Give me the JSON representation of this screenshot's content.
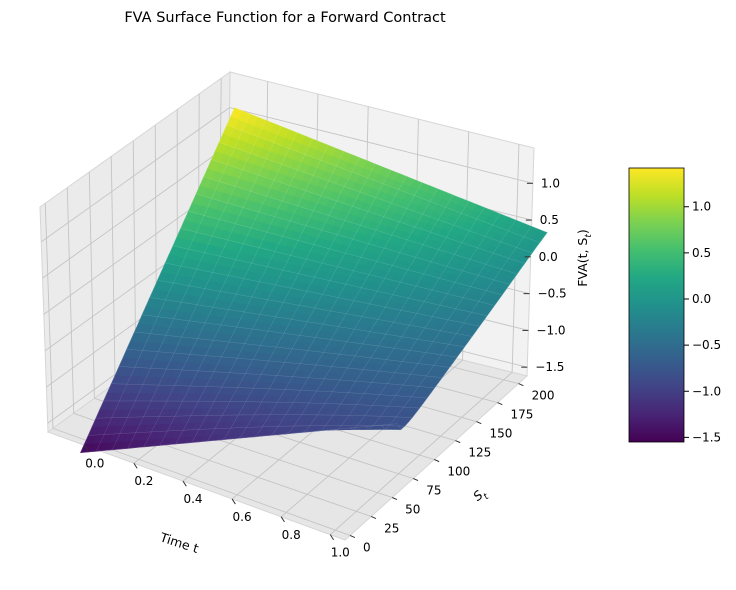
{
  "chart_data": {
    "type": "surface3d",
    "title": "FVA Surface Function for a Forward Contract",
    "xlabel": "Time t",
    "ylabel": "S",
    "ylabel_subscript": "t",
    "zlabel": "FVA(t, S",
    "zlabel_subscript": "t",
    "zlabel_suffix": ")",
    "x_ticks": [
      "0.0",
      "0.2",
      "0.4",
      "0.6",
      "0.8",
      "1.0"
    ],
    "y_ticks": [
      "0",
      "25",
      "50",
      "75",
      "100",
      "125",
      "150",
      "175",
      "200"
    ],
    "z_ticks": [
      "−1.5",
      "−1.0",
      "−0.5",
      "0.0",
      "0.5",
      "1.0"
    ],
    "colorbar_ticks": [
      "−1.5",
      "−1.0",
      "−0.5",
      "0.0",
      "0.5",
      "1.0"
    ],
    "xlim": [
      0,
      1
    ],
    "ylim": [
      0,
      210
    ],
    "zlim": [
      -1.55,
      1.42
    ],
    "colormap": "viridis",
    "grid": true,
    "corner_values": {
      "t0_S0": -1.5,
      "t1_S0": -0.68,
      "t0_S200": 1.42,
      "t1_S200": 0.07
    }
  }
}
